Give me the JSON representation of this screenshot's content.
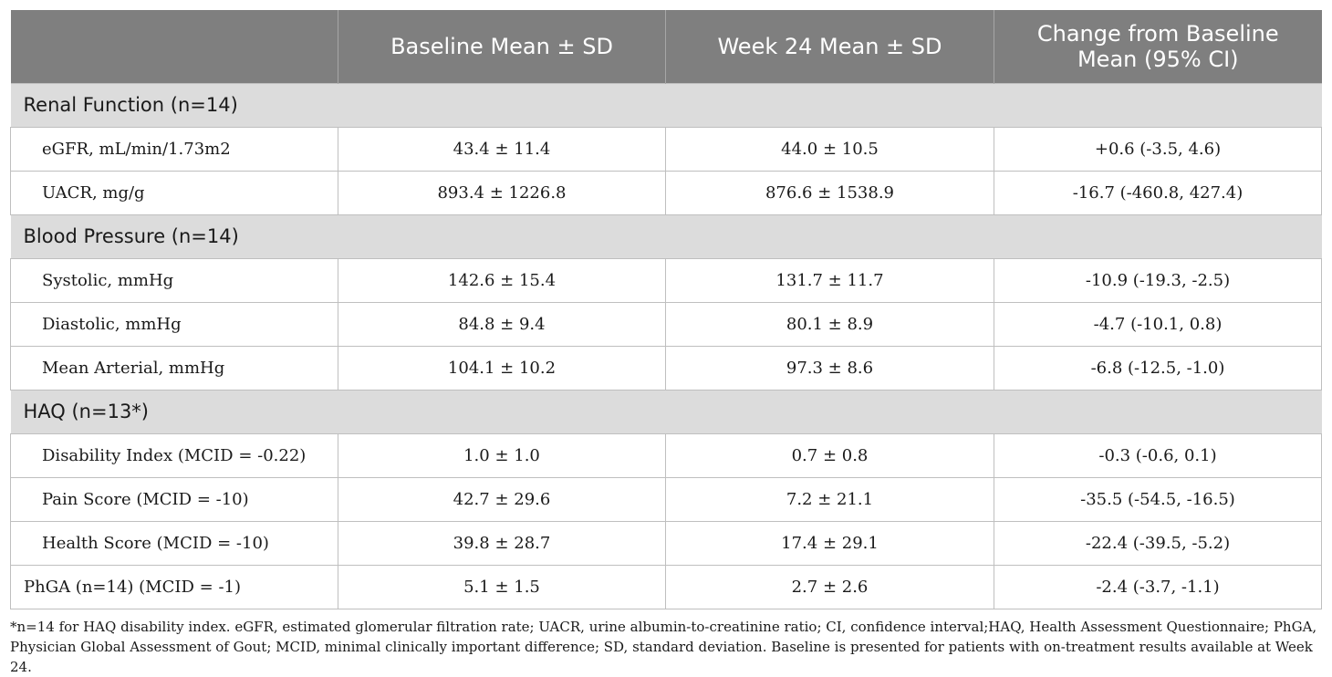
{
  "header": {
    "col0": "",
    "col1": "Baseline Mean ± SD",
    "col2": "Week 24 Mean ± SD",
    "col3": "Change from Baseline Mean (95% CI)"
  },
  "sections": [
    {
      "title": "Renal Function (n=14)",
      "rows": [
        {
          "label": "eGFR, mL/min/1.73m2",
          "baseline": "43.4 ± 11.4",
          "week24": "44.0 ± 10.5",
          "change": "+0.6 (-3.5, 4.6)"
        },
        {
          "label": "UACR, mg/g",
          "baseline": "893.4 ± 1226.8",
          "week24": "876.6 ± 1538.9",
          "change": "-16.7 (-460.8, 427.4)"
        }
      ]
    },
    {
      "title": "Blood Pressure (n=14)",
      "rows": [
        {
          "label": "Systolic, mmHg",
          "baseline": "142.6 ± 15.4",
          "week24": "131.7 ± 11.7",
          "change": "-10.9 (-19.3, -2.5)"
        },
        {
          "label": "Diastolic, mmHg",
          "baseline": "84.8 ± 9.4",
          "week24": "80.1 ± 8.9",
          "change": "-4.7 (-10.1, 0.8)"
        },
        {
          "label": "Mean Arterial, mmHg",
          "baseline": "104.1 ± 10.2",
          "week24": "97.3 ± 8.6",
          "change": "-6.8 (-12.5, -1.0)"
        }
      ]
    },
    {
      "title": "HAQ (n=13*)",
      "rows": [
        {
          "label": "Disability Index (MCID = -0.22)",
          "baseline": "1.0 ± 1.0",
          "week24": "0.7 ± 0.8",
          "change": "-0.3 (-0.6, 0.1)"
        },
        {
          "label": "Pain Score (MCID = -10)",
          "baseline": "42.7 ± 29.6",
          "week24": "7.2 ± 21.1",
          "change": "-35.5 (-54.5, -16.5)"
        },
        {
          "label": "Health Score (MCID = -10)",
          "baseline": "39.8 ± 28.7",
          "week24": "17.4 ± 29.1",
          "change": "-22.4 (-39.5, -5.2)"
        }
      ]
    }
  ],
  "final_row": {
    "label": "PhGA (n=14) (MCID = -1)",
    "baseline": "5.1 ± 1.5",
    "week24": "2.7 ± 2.6",
    "change": "-2.4 (-3.7, -1.1)"
  },
  "footnote": {
    "line1": "*n=14 for HAQ disability index. eGFR, estimated glomerular filtration rate; UACR, urine albumin-to-creatinine ratio; CI, confidence interval;HAQ, Health Assessment Questionnaire; PhGA,",
    "line2": "Physician Global Assessment of Gout; MCID, minimal clinically important difference; SD, standard deviation. Baseline is presented for patients with on-treatment results available at Week 24."
  }
}
